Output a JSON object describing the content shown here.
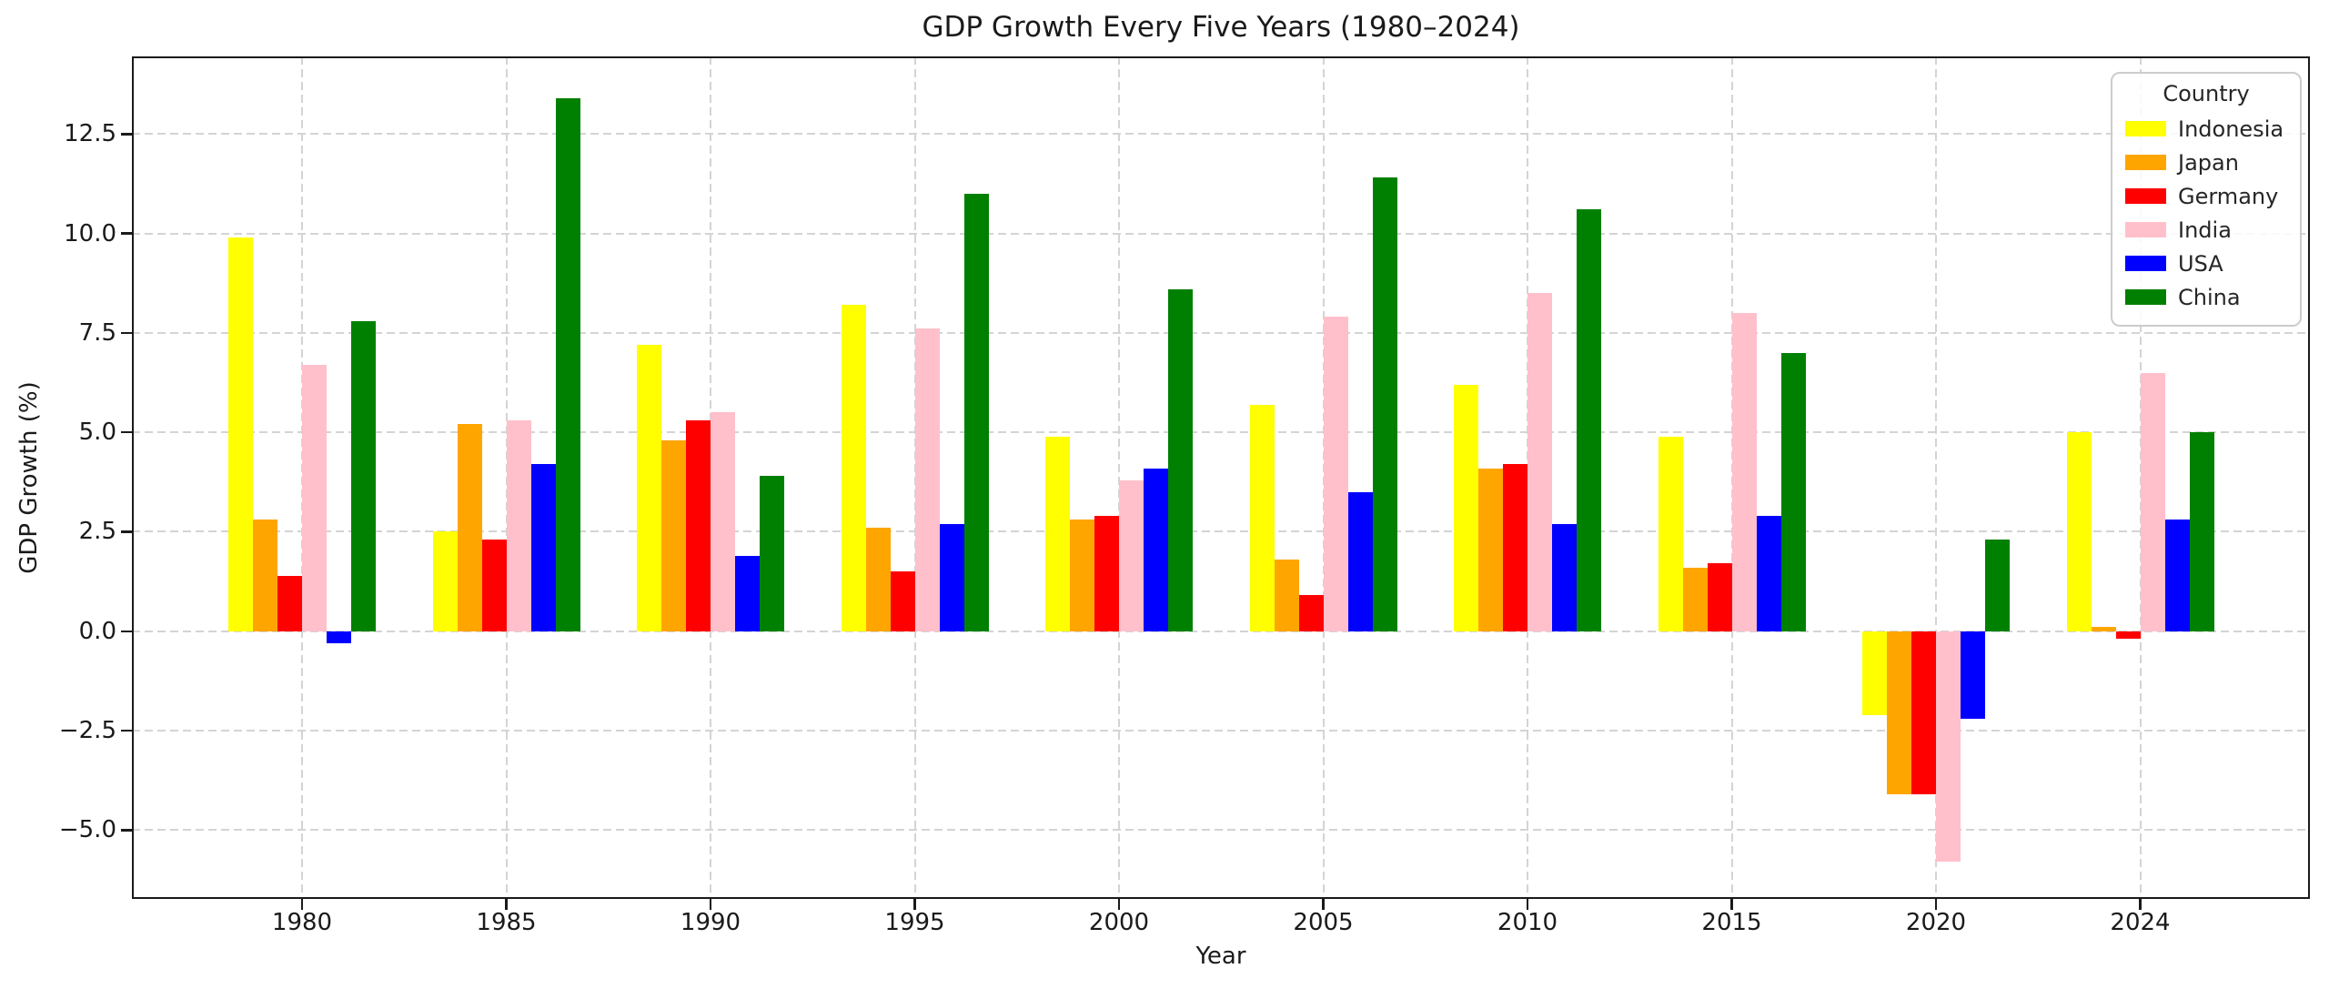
{
  "chart_data": {
    "type": "bar",
    "title": "GDP Growth Every Five Years (1980–2024)",
    "xlabel": "Year",
    "ylabel": "GDP Growth (%)",
    "legend_title": "Country",
    "legend_position": "upper right",
    "grid": true,
    "grid_style": "dashed",
    "categories": [
      "1980",
      "1985",
      "1990",
      "1995",
      "2000",
      "2005",
      "2010",
      "2015",
      "2020",
      "2024"
    ],
    "series": [
      {
        "name": "Indonesia",
        "color": "#FFFF00",
        "values": [
          9.9,
          2.5,
          7.2,
          8.2,
          4.9,
          5.7,
          6.2,
          4.9,
          -2.1,
          5.0
        ]
      },
      {
        "name": "Japan",
        "color": "#FFA500",
        "values": [
          2.8,
          5.2,
          4.8,
          2.6,
          2.8,
          1.8,
          4.1,
          1.6,
          -4.1,
          0.1
        ]
      },
      {
        "name": "Germany",
        "color": "#FF0000",
        "values": [
          1.4,
          2.3,
          5.3,
          1.5,
          2.9,
          0.9,
          4.2,
          1.7,
          -4.1,
          -0.2
        ]
      },
      {
        "name": "India",
        "color": "#FFC0CB",
        "values": [
          6.7,
          5.3,
          5.5,
          7.6,
          3.8,
          7.9,
          8.5,
          8.0,
          -5.8,
          6.5
        ]
      },
      {
        "name": "USA",
        "color": "#0000FF",
        "values": [
          -0.3,
          4.2,
          1.9,
          2.7,
          4.1,
          3.5,
          2.7,
          2.9,
          -2.2,
          2.8
        ]
      },
      {
        "name": "China",
        "color": "#008000",
        "values": [
          7.8,
          13.4,
          3.9,
          11.0,
          8.6,
          11.4,
          10.6,
          7.0,
          2.3,
          5.0
        ]
      }
    ],
    "yticks": [
      -5.0,
      -2.5,
      0.0,
      2.5,
      5.0,
      7.5,
      10.0,
      12.5
    ],
    "ylim": [
      -6.73,
      14.45
    ],
    "axis_color": "#1a1a1a",
    "gridline_color": "#d4d4d4",
    "background_color": "#ffffff"
  }
}
